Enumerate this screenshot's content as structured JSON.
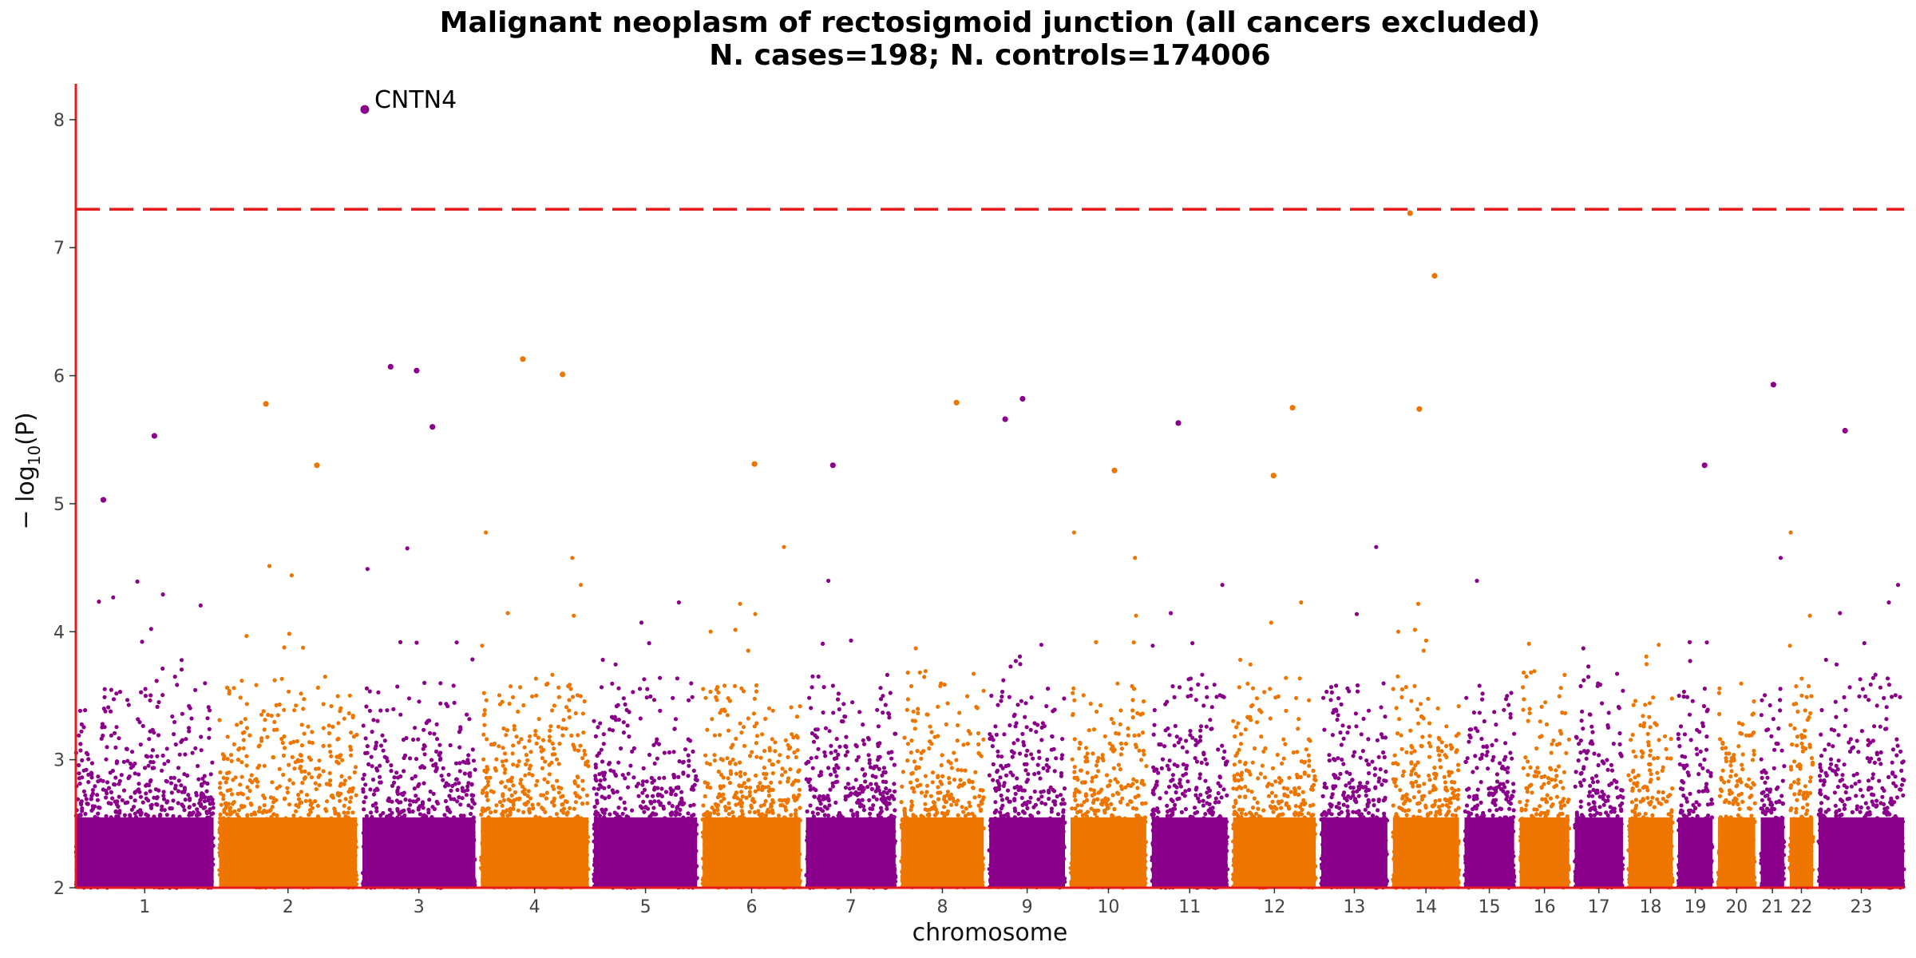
{
  "chart_data": {
    "type": "scatter",
    "subtype": "manhattan",
    "title": "Malignant neoplasm of rectosigmoid junction (all cancers excluded)",
    "subtitle": "N. cases=198; N. controls=174006",
    "xlabel": "chromosome",
    "ylabel_base": "− log",
    "ylabel_sub": "10",
    "ylabel_rest": "(P)",
    "ylim": [
      2,
      8.28
    ],
    "yticks": [
      2,
      3,
      4,
      5,
      6,
      7,
      8
    ],
    "grid": false,
    "legend": "none",
    "significance_threshold": 7.3,
    "colors": {
      "odd": "#8B008B",
      "even": "#EE7600",
      "axis": "#E41A1C",
      "threshold": "#E41A1C"
    },
    "chromosomes": [
      {
        "label": "1",
        "color": "odd"
      },
      {
        "label": "2",
        "color": "even"
      },
      {
        "label": "3",
        "color": "odd"
      },
      {
        "label": "4",
        "color": "even"
      },
      {
        "label": "5",
        "color": "odd"
      },
      {
        "label": "6",
        "color": "even"
      },
      {
        "label": "7",
        "color": "odd"
      },
      {
        "label": "8",
        "color": "even"
      },
      {
        "label": "9",
        "color": "odd"
      },
      {
        "label": "10",
        "color": "even"
      },
      {
        "label": "11",
        "color": "odd"
      },
      {
        "label": "12",
        "color": "even"
      },
      {
        "label": "13",
        "color": "odd"
      },
      {
        "label": "14",
        "color": "even"
      },
      {
        "label": "15",
        "color": "odd"
      },
      {
        "label": "16",
        "color": "even"
      },
      {
        "label": "17",
        "color": "odd"
      },
      {
        "label": "18",
        "color": "even"
      },
      {
        "label": "19",
        "color": "odd"
      },
      {
        "label": "20",
        "color": "even"
      },
      {
        "label": "21",
        "color": "odd"
      },
      {
        "label": "22",
        "color": "even"
      },
      {
        "label": "23",
        "color": "odd"
      }
    ],
    "annotated_points": [
      {
        "label": "CNTN4",
        "chromosome": "3",
        "y": 8.08
      }
    ],
    "top_points": [
      {
        "chromosome": "1",
        "y": 5.03
      },
      {
        "chromosome": "1",
        "y": 5.53
      },
      {
        "chromosome": "2",
        "y": 5.78
      },
      {
        "chromosome": "2",
        "y": 5.3
      },
      {
        "chromosome": "3",
        "y": 6.04
      },
      {
        "chromosome": "3",
        "y": 6.07
      },
      {
        "chromosome": "3",
        "y": 5.6
      },
      {
        "chromosome": "4",
        "y": 6.13
      },
      {
        "chromosome": "4",
        "y": 6.01
      },
      {
        "chromosome": "6",
        "y": 5.31
      },
      {
        "chromosome": "7",
        "y": 5.3
      },
      {
        "chromosome": "8",
        "y": 5.79
      },
      {
        "chromosome": "9",
        "y": 5.82
      },
      {
        "chromosome": "9",
        "y": 5.66
      },
      {
        "chromosome": "10",
        "y": 5.26
      },
      {
        "chromosome": "11",
        "y": 5.63
      },
      {
        "chromosome": "12",
        "y": 5.75
      },
      {
        "chromosome": "12",
        "y": 5.22
      },
      {
        "chromosome": "14",
        "y": 7.27
      },
      {
        "chromosome": "14",
        "y": 6.78
      },
      {
        "chromosome": "14",
        "y": 5.74
      },
      {
        "chromosome": "19",
        "y": 5.3
      },
      {
        "chromosome": "21",
        "y": 5.93
      },
      {
        "chromosome": "23",
        "y": 5.57
      }
    ]
  }
}
